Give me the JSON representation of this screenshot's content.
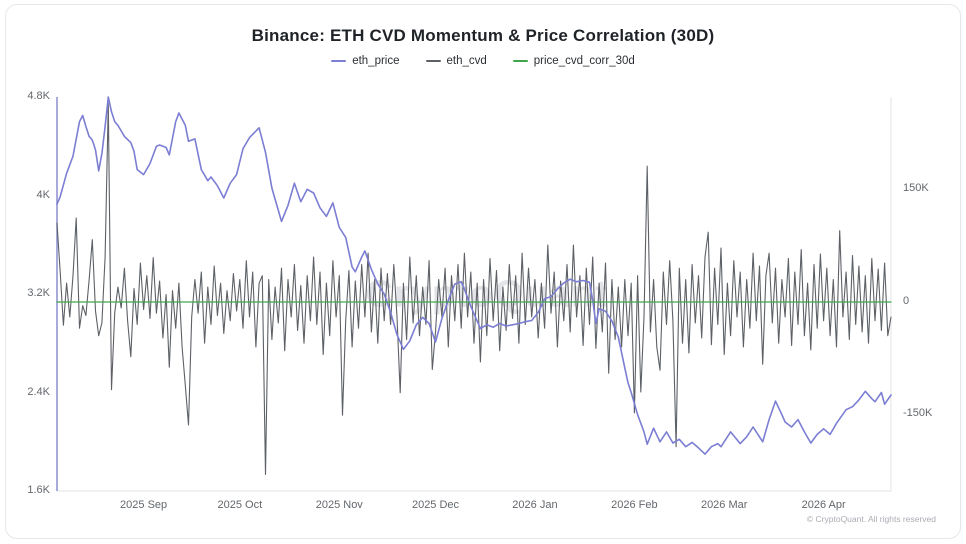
{
  "title": "Binance: ETH CVD Momentum & Price Correlation (30D)",
  "watermark": "CryptoQuant",
  "copyright": "© CryptoQuant. All rights reserved",
  "colors": {
    "eth_price": "#7b7ed3",
    "eth_cvd": "#5d6166",
    "price_cvd_corr_30d": "#3fa64b",
    "axis_left_line": "#8b8dd0",
    "plot_border": "#e3e3e6",
    "tick_text": "#63676c"
  },
  "legend": {
    "items": [
      {
        "label": "eth_price",
        "color": "#7b7ed3"
      },
      {
        "label": "eth_cvd",
        "color": "#5d6166"
      },
      {
        "label": "price_cvd_corr_30d",
        "color": "#3fa64b"
      }
    ]
  },
  "chart_data": {
    "type": "line",
    "title": "Binance: ETH CVD Momentum & Price Correlation (30D)",
    "grid": false,
    "legend_position": "top-center",
    "x_axis": {
      "unit": "day_index",
      "range": [
        0,
        260
      ],
      "labels": [
        "2025 Sep",
        "2025 Oct",
        "2025 Nov",
        "2025 Dec",
        "2026 Jan",
        "2026 Feb",
        "2026 Mar",
        "2026 Apr"
      ],
      "label_days": [
        27,
        57,
        88,
        118,
        149,
        180,
        208,
        239
      ]
    },
    "left_axis": {
      "series": "eth_price",
      "tick_labels": [
        "4.8K",
        "4K",
        "3.2K",
        "2.4K",
        "1.6K"
      ],
      "tick_values": [
        4800,
        4000,
        3200,
        2400,
        1600
      ],
      "range": [
        1600,
        4800
      ]
    },
    "right_axis": {
      "series": "eth_cvd",
      "tick_labels": [
        "150K",
        "0",
        "-150K"
      ],
      "tick_values": [
        150000,
        0,
        -150000
      ],
      "range": [
        -252000,
        273333
      ]
    },
    "series": [
      {
        "name": "eth_price",
        "axis": "left",
        "color": "#7b7ed3",
        "width": 1.6,
        "points": [
          [
            0,
            3930
          ],
          [
            1,
            3990
          ],
          [
            3,
            4180
          ],
          [
            5,
            4320
          ],
          [
            7,
            4600
          ],
          [
            8,
            4650
          ],
          [
            9,
            4560
          ],
          [
            10,
            4480
          ],
          [
            11,
            4450
          ],
          [
            12,
            4370
          ],
          [
            13,
            4200
          ],
          [
            14,
            4340
          ],
          [
            15,
            4560
          ],
          [
            16,
            4800
          ],
          [
            17,
            4680
          ],
          [
            18,
            4600
          ],
          [
            19,
            4570
          ],
          [
            21,
            4480
          ],
          [
            23,
            4430
          ],
          [
            24,
            4360
          ],
          [
            25,
            4210
          ],
          [
            27,
            4170
          ],
          [
            29,
            4260
          ],
          [
            31,
            4400
          ],
          [
            32,
            4410
          ],
          [
            34,
            4390
          ],
          [
            35,
            4330
          ],
          [
            37,
            4600
          ],
          [
            38,
            4670
          ],
          [
            40,
            4570
          ],
          [
            41,
            4440
          ],
          [
            43,
            4460
          ],
          [
            45,
            4210
          ],
          [
            47,
            4120
          ],
          [
            48,
            4150
          ],
          [
            50,
            4080
          ],
          [
            52,
            3980
          ],
          [
            54,
            4100
          ],
          [
            56,
            4170
          ],
          [
            58,
            4380
          ],
          [
            60,
            4470
          ],
          [
            63,
            4550
          ],
          [
            65,
            4350
          ],
          [
            67,
            4060
          ],
          [
            70,
            3790
          ],
          [
            72,
            3920
          ],
          [
            74,
            4100
          ],
          [
            76,
            3950
          ],
          [
            78,
            4050
          ],
          [
            80,
            4020
          ],
          [
            82,
            3900
          ],
          [
            84,
            3830
          ],
          [
            86,
            3940
          ],
          [
            88,
            3740
          ],
          [
            90,
            3660
          ],
          [
            92,
            3420
          ],
          [
            93,
            3380
          ],
          [
            95,
            3500
          ],
          [
            96,
            3550
          ],
          [
            98,
            3400
          ],
          [
            100,
            3280
          ],
          [
            102,
            3200
          ],
          [
            104,
            3050
          ],
          [
            106,
            2870
          ],
          [
            108,
            2750
          ],
          [
            110,
            2820
          ],
          [
            112,
            2950
          ],
          [
            114,
            3010
          ],
          [
            116,
            2960
          ],
          [
            118,
            2810
          ],
          [
            120,
            3000
          ],
          [
            122,
            3150
          ],
          [
            124,
            3280
          ],
          [
            126,
            3300
          ],
          [
            127,
            3240
          ],
          [
            129,
            3100
          ],
          [
            131,
            2980
          ],
          [
            132,
            2920
          ],
          [
            134,
            2950
          ],
          [
            136,
            2930
          ],
          [
            138,
            2960
          ],
          [
            140,
            2940
          ],
          [
            142,
            2950
          ],
          [
            144,
            2960
          ],
          [
            146,
            2975
          ],
          [
            148,
            2985
          ],
          [
            150,
            3050
          ],
          [
            152,
            3160
          ],
          [
            154,
            3180
          ],
          [
            156,
            3240
          ],
          [
            158,
            3290
          ],
          [
            160,
            3320
          ],
          [
            162,
            3300
          ],
          [
            164,
            3310
          ],
          [
            166,
            3295
          ],
          [
            167,
            3150
          ],
          [
            168,
            2960
          ],
          [
            169,
            3080
          ],
          [
            171,
            3060
          ],
          [
            173,
            2980
          ],
          [
            175,
            2850
          ],
          [
            177,
            2600
          ],
          [
            178,
            2480
          ],
          [
            179,
            2400
          ],
          [
            181,
            2220
          ],
          [
            183,
            2080
          ],
          [
            184,
            1980
          ],
          [
            186,
            2110
          ],
          [
            188,
            2000
          ],
          [
            190,
            2080
          ],
          [
            192,
            1990
          ],
          [
            194,
            2020
          ],
          [
            196,
            1960
          ],
          [
            198,
            1995
          ],
          [
            200,
            1950
          ],
          [
            202,
            1900
          ],
          [
            204,
            1960
          ],
          [
            206,
            1985
          ],
          [
            207,
            1960
          ],
          [
            210,
            2080
          ],
          [
            213,
            1985
          ],
          [
            215,
            2040
          ],
          [
            217,
            2120
          ],
          [
            220,
            2000
          ],
          [
            222,
            2180
          ],
          [
            224,
            2330
          ],
          [
            226,
            2220
          ],
          [
            227,
            2160
          ],
          [
            229,
            2120
          ],
          [
            231,
            2180
          ],
          [
            233,
            2080
          ],
          [
            235,
            1990
          ],
          [
            237,
            2060
          ],
          [
            239,
            2105
          ],
          [
            241,
            2060
          ],
          [
            243,
            2150
          ],
          [
            246,
            2260
          ],
          [
            248,
            2285
          ],
          [
            250,
            2340
          ],
          [
            252,
            2410
          ],
          [
            254,
            2350
          ],
          [
            255,
            2325
          ],
          [
            257,
            2400
          ],
          [
            258,
            2305
          ],
          [
            260,
            2380
          ]
        ]
      },
      {
        "name": "eth_cvd",
        "axis": "right",
        "color": "#5d6166",
        "width": 1.1,
        "x_start": 0,
        "x_step": 1,
        "values_daily": [
          105000,
          40000,
          -31000,
          25000,
          -20000,
          35000,
          112000,
          -35000,
          -5000,
          -18000,
          29000,
          83000,
          -12000,
          -45000,
          -28000,
          60000,
          265000,
          -117000,
          -15000,
          20000,
          -8000,
          45000,
          -25000,
          -73000,
          18000,
          -30000,
          52000,
          -10000,
          35000,
          -22000,
          59000,
          -15000,
          28000,
          -48000,
          10000,
          -87000,
          15000,
          -35000,
          25000,
          -60000,
          -111000,
          -164000,
          -20000,
          30000,
          -15000,
          40000,
          -55000,
          20000,
          -30000,
          48000,
          -18000,
          25000,
          -42000,
          15000,
          -25000,
          38000,
          -12000,
          30000,
          -35000,
          55000,
          -20000,
          40000,
          -60000,
          25000,
          35000,
          -230000,
          30000,
          -50000,
          20000,
          -28000,
          45000,
          -65000,
          30000,
          -20000,
          50000,
          -38000,
          22000,
          -55000,
          35000,
          -25000,
          60000,
          -30000,
          40000,
          -70000,
          25000,
          -45000,
          55000,
          -20000,
          35000,
          -151000,
          -25000,
          42000,
          -60000,
          28000,
          -35000,
          50000,
          -20000,
          65000,
          -40000,
          30000,
          -55000,
          45000,
          -25000,
          38000,
          -30000,
          50000,
          -20000,
          -121000,
          25000,
          -50000,
          60000,
          -28000,
          35000,
          -45000,
          20000,
          -30000,
          55000,
          -90000,
          -40000,
          30000,
          -20000,
          45000,
          -60000,
          35000,
          -25000,
          50000,
          -35000,
          65000,
          -20000,
          40000,
          -55000,
          25000,
          -80000,
          30000,
          -45000,
          58000,
          -25000,
          42000,
          -65000,
          20000,
          -38000,
          50000,
          -22000,
          35000,
          -55000,
          65000,
          -30000,
          45000,
          -20000,
          30000,
          -48000,
          25000,
          -35000,
          76000,
          -15000,
          40000,
          -60000,
          28000,
          -25000,
          50000,
          -40000,
          76000,
          -20000,
          35000,
          -58000,
          45000,
          -30000,
          60000,
          -62000,
          25000,
          -40000,
          52000,
          -95000,
          30000,
          -50000,
          20000,
          -60000,
          30000,
          -45000,
          25000,
          -148000,
          35000,
          -120000,
          -20000,
          181000,
          -40000,
          30000,
          -60000,
          -91000,
          40000,
          -30000,
          55000,
          -25000,
          -193000,
          45000,
          -55000,
          30000,
          -68000,
          50000,
          -28000,
          35000,
          -48000,
          60000,
          93000,
          -57000,
          45000,
          -30000,
          72000,
          -70000,
          25000,
          -45000,
          55000,
          -20000,
          40000,
          -60000,
          30000,
          -35000,
          65000,
          -25000,
          48000,
          -83000,
          35000,
          65000,
          -28000,
          45000,
          -55000,
          30000,
          -20000,
          58000,
          -58000,
          40000,
          -30000,
          70000,
          -45000,
          25000,
          -64000,
          50000,
          -35000,
          64000,
          -25000,
          45000,
          -45000,
          30000,
          -60000,
          95000,
          -20000,
          40000,
          -50000,
          62000,
          -30000,
          48000,
          -40000,
          35000,
          -55000,
          58000,
          -25000,
          44000,
          -38000,
          52000,
          -45000,
          -20000
        ]
      },
      {
        "name": "price_cvd_corr_30d",
        "axis": "right",
        "color": "#3fa64b",
        "width": 1.3,
        "points": [
          [
            0,
            0.15
          ],
          [
            40,
            -0.2
          ],
          [
            80,
            0.25
          ],
          [
            120,
            -0.15
          ],
          [
            160,
            0.2
          ],
          [
            200,
            -0.25
          ],
          [
            230,
            0.1
          ],
          [
            260,
            -0.05
          ]
        ]
      }
    ]
  }
}
